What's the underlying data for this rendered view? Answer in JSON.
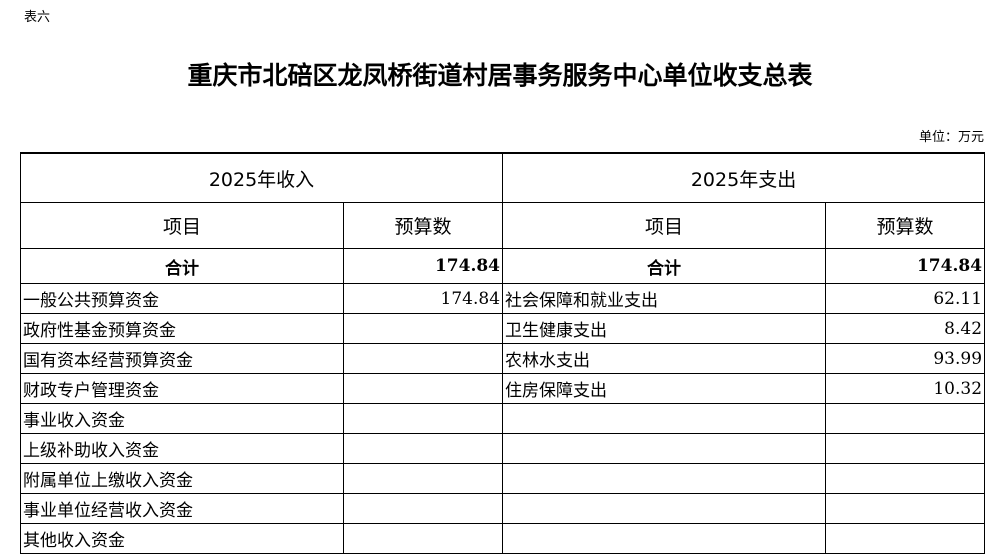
{
  "doc": {
    "tag": "表六",
    "title": "重庆市北碚区龙凤桥街道村居事务服务中心单位收支总表",
    "unit": "单位：万元"
  },
  "table": {
    "income_header": "2025年收入",
    "expense_header": "2025年支出",
    "col_item": "项目",
    "col_budget": "预算数",
    "total_label": "合计",
    "income_total": "174.84",
    "expense_total": "174.84",
    "rows": [
      {
        "income_item": "一般公共预算资金",
        "income_value": "174.84",
        "expense_item": "社会保障和就业支出",
        "expense_value": "62.11"
      },
      {
        "income_item": "政府性基金预算资金",
        "income_value": "",
        "expense_item": "卫生健康支出",
        "expense_value": "8.42"
      },
      {
        "income_item": "国有资本经营预算资金",
        "income_value": "",
        "expense_item": "农林水支出",
        "expense_value": "93.99"
      },
      {
        "income_item": "财政专户管理资金",
        "income_value": "",
        "expense_item": "住房保障支出",
        "expense_value": "10.32"
      },
      {
        "income_item": "事业收入资金",
        "income_value": "",
        "expense_item": "",
        "expense_value": ""
      },
      {
        "income_item": "上级补助收入资金",
        "income_value": "",
        "expense_item": "",
        "expense_value": ""
      },
      {
        "income_item": "附属单位上缴收入资金",
        "income_value": "",
        "expense_item": "",
        "expense_value": ""
      },
      {
        "income_item": "事业单位经营收入资金",
        "income_value": "",
        "expense_item": "",
        "expense_value": ""
      },
      {
        "income_item": "其他收入资金",
        "income_value": "",
        "expense_item": "",
        "expense_value": ""
      }
    ]
  }
}
